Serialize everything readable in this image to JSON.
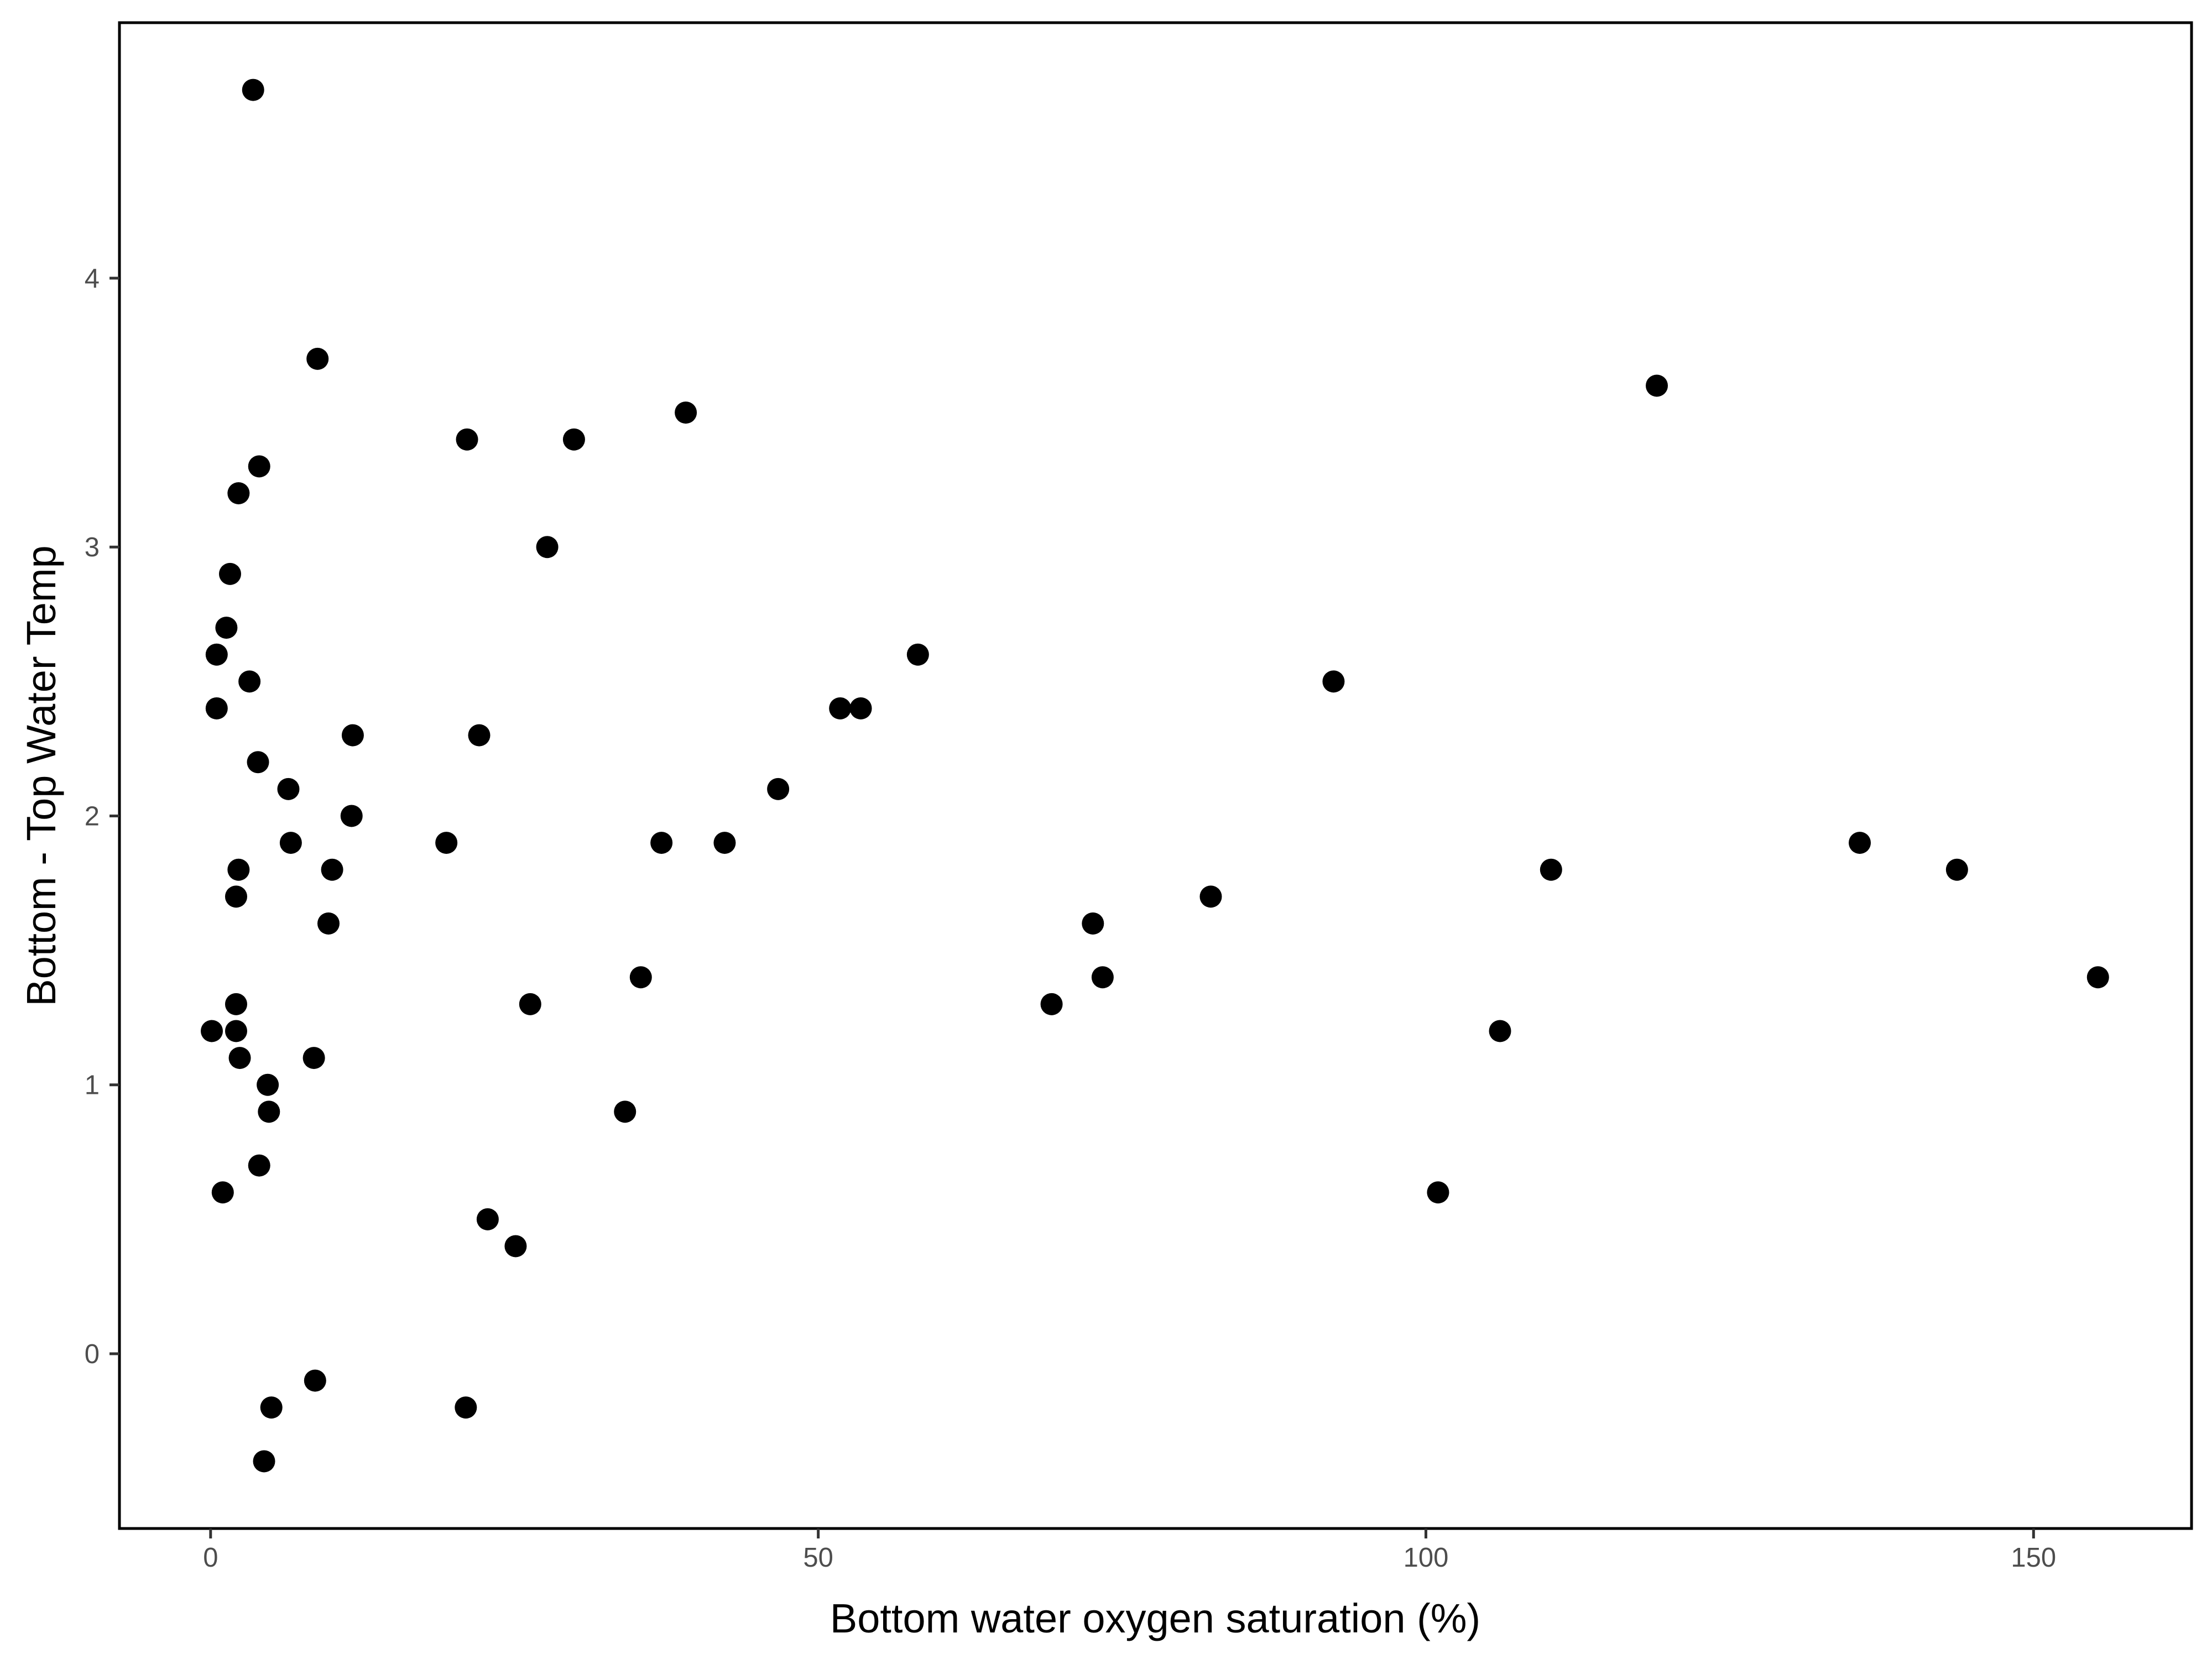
{
  "chart_data": {
    "type": "scatter",
    "xlabel": "Bottom water oxygen saturation (%)",
    "ylabel": "Bottom - Top Water Temp",
    "xlim": [
      -7.5,
      163
    ],
    "ylim": [
      -0.65,
      4.95
    ],
    "x_ticks": [
      0,
      50,
      100,
      150
    ],
    "x_tick_labels": [
      "0",
      "50",
      "100",
      "150"
    ],
    "y_ticks": [
      0,
      1,
      2,
      3,
      4
    ],
    "y_tick_labels": [
      "0",
      "1",
      "2",
      "3",
      "4"
    ],
    "grid": false,
    "point_color": "#000000",
    "points": [
      {
        "x": 3.5,
        "y": 4.7
      },
      {
        "x": 8.8,
        "y": 3.7
      },
      {
        "x": 4.0,
        "y": 3.3
      },
      {
        "x": 2.3,
        "y": 3.2
      },
      {
        "x": 1.6,
        "y": 2.9
      },
      {
        "x": 1.3,
        "y": 2.7
      },
      {
        "x": 0.5,
        "y": 2.6
      },
      {
        "x": 3.2,
        "y": 2.5
      },
      {
        "x": 0.5,
        "y": 2.4
      },
      {
        "x": 3.9,
        "y": 2.2
      },
      {
        "x": 11.7,
        "y": 2.3
      },
      {
        "x": 6.4,
        "y": 2.1
      },
      {
        "x": 11.6,
        "y": 2.0
      },
      {
        "x": 6.6,
        "y": 1.9
      },
      {
        "x": 2.3,
        "y": 1.8
      },
      {
        "x": 10.0,
        "y": 1.8
      },
      {
        "x": 2.1,
        "y": 1.7
      },
      {
        "x": 9.7,
        "y": 1.6
      },
      {
        "x": 2.1,
        "y": 1.3
      },
      {
        "x": 0.1,
        "y": 1.2
      },
      {
        "x": 2.1,
        "y": 1.2
      },
      {
        "x": 2.4,
        "y": 1.1
      },
      {
        "x": 8.5,
        "y": 1.1
      },
      {
        "x": 4.7,
        "y": 1.0
      },
      {
        "x": 4.8,
        "y": 0.9
      },
      {
        "x": 4.0,
        "y": 0.7
      },
      {
        "x": 1.0,
        "y": 0.6
      },
      {
        "x": 8.6,
        "y": -0.1
      },
      {
        "x": 5.0,
        "y": -0.2
      },
      {
        "x": 4.4,
        "y": -0.4
      },
      {
        "x": 21.1,
        "y": 3.4
      },
      {
        "x": 29.9,
        "y": 3.4
      },
      {
        "x": 39.1,
        "y": 3.5
      },
      {
        "x": 27.7,
        "y": 3.0
      },
      {
        "x": 22.1,
        "y": 2.3
      },
      {
        "x": 19.4,
        "y": 1.9
      },
      {
        "x": 37.1,
        "y": 1.9
      },
      {
        "x": 42.3,
        "y": 1.9
      },
      {
        "x": 35.4,
        "y": 1.4
      },
      {
        "x": 26.3,
        "y": 1.3
      },
      {
        "x": 34.1,
        "y": 0.9
      },
      {
        "x": 22.8,
        "y": 0.5
      },
      {
        "x": 25.1,
        "y": 0.4
      },
      {
        "x": 21.0,
        "y": -0.2
      },
      {
        "x": 58.2,
        "y": 2.6
      },
      {
        "x": 51.8,
        "y": 2.4
      },
      {
        "x": 53.5,
        "y": 2.4
      },
      {
        "x": 46.7,
        "y": 2.1
      },
      {
        "x": 72.6,
        "y": 1.6
      },
      {
        "x": 73.4,
        "y": 1.4
      },
      {
        "x": 69.2,
        "y": 1.3
      },
      {
        "x": 82.3,
        "y": 1.7
      },
      {
        "x": 92.4,
        "y": 2.5
      },
      {
        "x": 119.0,
        "y": 3.6
      },
      {
        "x": 110.3,
        "y": 1.8
      },
      {
        "x": 106.1,
        "y": 1.2
      },
      {
        "x": 101.0,
        "y": 0.6
      },
      {
        "x": 135.7,
        "y": 1.9
      },
      {
        "x": 143.7,
        "y": 1.8
      },
      {
        "x": 155.3,
        "y": 1.4
      }
    ]
  }
}
